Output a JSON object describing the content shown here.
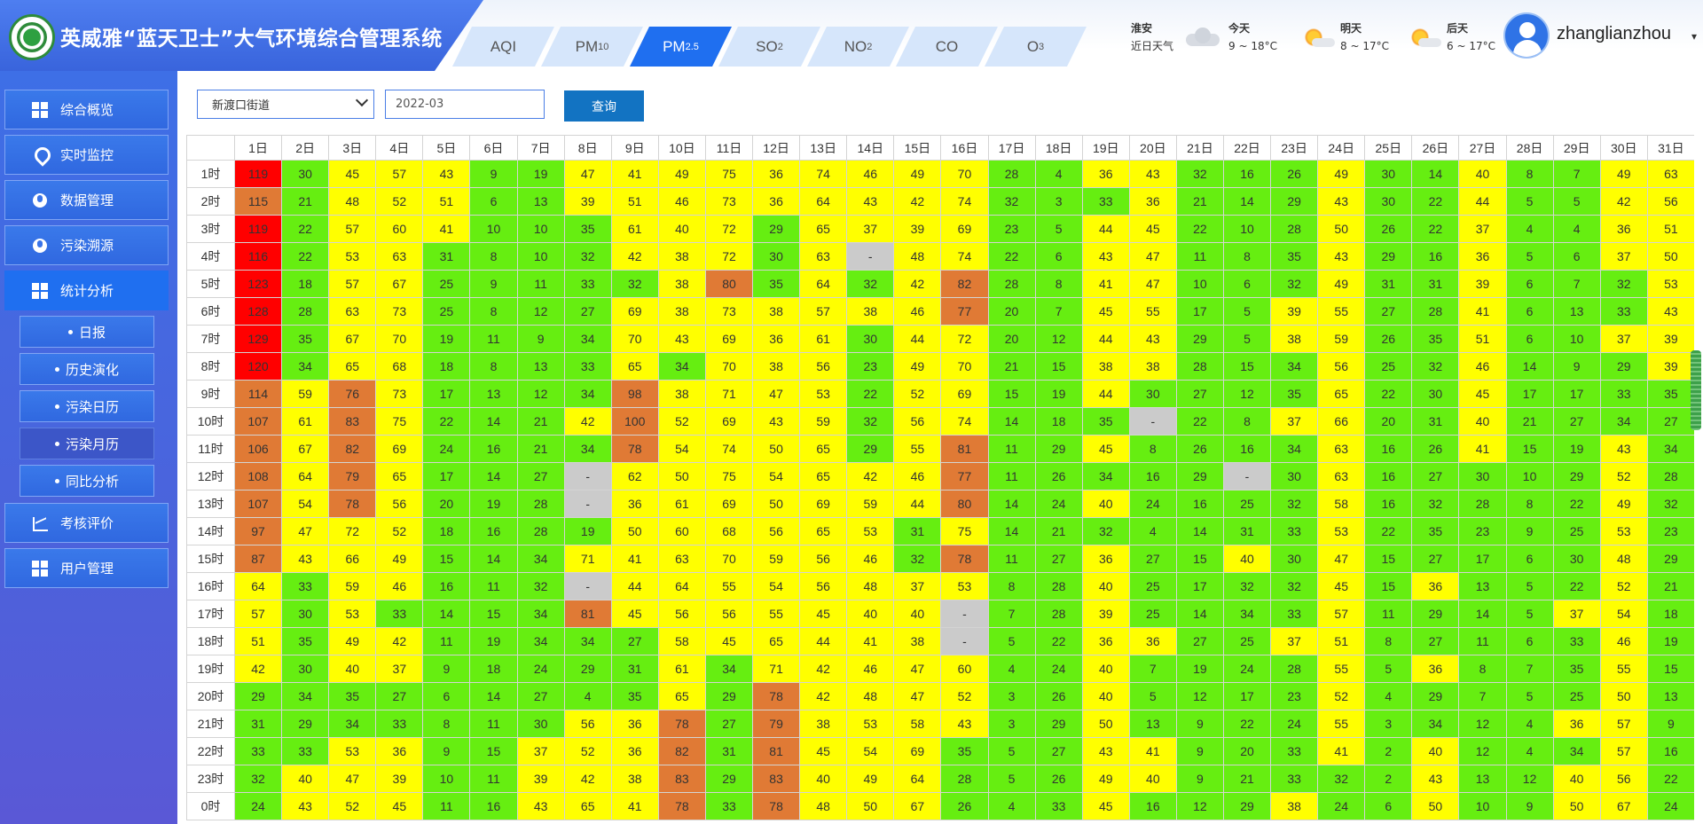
{
  "app": {
    "title": "英威雅“蓝天卫士”大气环境综合管理系统"
  },
  "colors": {
    "brand": "#3964dc",
    "tab_active": "#1f6ff0",
    "level_green": "#66ee11",
    "level_yellow": "#ffff00",
    "level_orange": "#e07a35",
    "level_red": "#ff0000",
    "level_none": "#cbcbcb"
  },
  "tabs": [
    {
      "base": "AQI",
      "sub": ""
    },
    {
      "base": "PM",
      "sub": "10"
    },
    {
      "base": "PM",
      "sub": "2.5",
      "active": true
    },
    {
      "base": "SO",
      "sub": "2"
    },
    {
      "base": "NO",
      "sub": "2"
    },
    {
      "base": "CO",
      "sub": ""
    },
    {
      "base": "O",
      "sub": "3"
    }
  ],
  "weather": {
    "city": "淮安",
    "label": "近日天气",
    "days": [
      {
        "name": "今天",
        "range": "9 ~ 18°C",
        "icon": "cloud-icon"
      },
      {
        "name": "明天",
        "range": "8 ~ 17°C",
        "icon": "sun-icon"
      },
      {
        "name": "后天",
        "range": "6 ~ 17°C",
        "icon": "sun-icon"
      }
    ]
  },
  "user": {
    "name": "zhanglianzhou"
  },
  "sidebar": {
    "items": [
      {
        "label": "综合概览",
        "icon": "grid-icon"
      },
      {
        "label": "实时监控",
        "icon": "location-pin-icon"
      },
      {
        "label": "数据管理",
        "icon": "globe-icon"
      },
      {
        "label": "污染溯源",
        "icon": "globe-icon"
      },
      {
        "label": "统计分析",
        "icon": "grid-icon",
        "active": true
      },
      {
        "label": "考核评价",
        "icon": "line-chart-icon"
      },
      {
        "label": "用户管理",
        "icon": "grid-icon"
      }
    ],
    "subitems": [
      {
        "label": "日报"
      },
      {
        "label": "历史演化"
      },
      {
        "label": "污染日历"
      },
      {
        "label": "污染月历",
        "active": true
      },
      {
        "label": "同比分析"
      }
    ]
  },
  "filters": {
    "station": "新渡口街道",
    "month": "2022-03",
    "query_label": "查询"
  },
  "grid": {
    "days": [
      "1日",
      "2日",
      "3日",
      "4日",
      "5日",
      "6日",
      "7日",
      "8日",
      "9日",
      "10日",
      "11日",
      "12日",
      "13日",
      "14日",
      "15日",
      "16日",
      "17日",
      "18日",
      "19日",
      "20日",
      "21日",
      "22日",
      "23日",
      "24日",
      "25日",
      "26日",
      "27日",
      "28日",
      "29日",
      "30日",
      "31日"
    ],
    "hours": [
      "1时",
      "2时",
      "3时",
      "4时",
      "5时",
      "6时",
      "7时",
      "8时",
      "9时",
      "10时",
      "11时",
      "12时",
      "13时",
      "14时",
      "15时",
      "16时",
      "17时",
      "18时",
      "19时",
      "20时",
      "21时",
      "22时",
      "23时",
      "0时"
    ],
    "rows": [
      [
        "119",
        "30",
        "45",
        "57",
        "43",
        "9",
        "19",
        "47",
        "41",
        "49",
        "75",
        "36",
        "74",
        "46",
        "49",
        "70",
        "28",
        "4",
        "36",
        "43",
        "32",
        "16",
        "26",
        "49",
        "30",
        "14",
        "40",
        "8",
        "7",
        "49",
        "63"
      ],
      [
        "115",
        "21",
        "48",
        "52",
        "51",
        "6",
        "13",
        "39",
        "51",
        "46",
        "73",
        "36",
        "64",
        "43",
        "42",
        "74",
        "32",
        "3",
        "33",
        "36",
        "21",
        "14",
        "29",
        "43",
        "30",
        "22",
        "44",
        "5",
        "5",
        "42",
        "56"
      ],
      [
        "119",
        "22",
        "57",
        "60",
        "41",
        "10",
        "10",
        "35",
        "61",
        "40",
        "72",
        "29",
        "65",
        "37",
        "39",
        "69",
        "23",
        "5",
        "44",
        "45",
        "22",
        "10",
        "28",
        "50",
        "26",
        "22",
        "37",
        "4",
        "4",
        "36",
        "51"
      ],
      [
        "116",
        "22",
        "53",
        "63",
        "31",
        "8",
        "10",
        "32",
        "42",
        "38",
        "72",
        "30",
        "63",
        "-",
        "48",
        "74",
        "22",
        "6",
        "43",
        "47",
        "11",
        "8",
        "35",
        "43",
        "29",
        "16",
        "36",
        "5",
        "6",
        "37",
        "50"
      ],
      [
        "123",
        "18",
        "57",
        "67",
        "25",
        "9",
        "11",
        "33",
        "32",
        "38",
        "80",
        "35",
        "64",
        "32",
        "42",
        "82",
        "28",
        "8",
        "41",
        "47",
        "10",
        "6",
        "32",
        "49",
        "31",
        "31",
        "39",
        "6",
        "7",
        "32",
        "53"
      ],
      [
        "128",
        "28",
        "63",
        "73",
        "25",
        "8",
        "12",
        "27",
        "69",
        "38",
        "73",
        "38",
        "57",
        "38",
        "46",
        "77",
        "20",
        "7",
        "45",
        "55",
        "17",
        "5",
        "39",
        "55",
        "27",
        "28",
        "41",
        "6",
        "13",
        "33",
        "43"
      ],
      [
        "129",
        "35",
        "67",
        "70",
        "19",
        "11",
        "9",
        "34",
        "70",
        "43",
        "69",
        "36",
        "61",
        "30",
        "44",
        "72",
        "20",
        "12",
        "44",
        "43",
        "29",
        "5",
        "38",
        "59",
        "26",
        "35",
        "51",
        "6",
        "10",
        "37",
        "39"
      ],
      [
        "120",
        "34",
        "65",
        "68",
        "18",
        "8",
        "13",
        "33",
        "65",
        "34",
        "70",
        "38",
        "56",
        "23",
        "49",
        "70",
        "21",
        "15",
        "38",
        "38",
        "28",
        "15",
        "34",
        "56",
        "25",
        "32",
        "46",
        "14",
        "9",
        "29",
        "39"
      ],
      [
        "114",
        "59",
        "76",
        "73",
        "17",
        "13",
        "12",
        "34",
        "98",
        "38",
        "71",
        "47",
        "53",
        "22",
        "52",
        "69",
        "15",
        "19",
        "44",
        "30",
        "27",
        "12",
        "35",
        "65",
        "22",
        "30",
        "45",
        "17",
        "17",
        "33",
        "35"
      ],
      [
        "107",
        "61",
        "83",
        "75",
        "22",
        "14",
        "21",
        "42",
        "100",
        "52",
        "69",
        "43",
        "59",
        "32",
        "56",
        "74",
        "14",
        "18",
        "35",
        "-",
        "22",
        "8",
        "37",
        "66",
        "20",
        "31",
        "40",
        "21",
        "27",
        "34",
        "27"
      ],
      [
        "106",
        "67",
        "82",
        "69",
        "24",
        "16",
        "21",
        "34",
        "78",
        "54",
        "74",
        "50",
        "65",
        "29",
        "55",
        "81",
        "11",
        "29",
        "45",
        "8",
        "26",
        "16",
        "34",
        "63",
        "16",
        "26",
        "41",
        "15",
        "19",
        "43",
        "34"
      ],
      [
        "108",
        "64",
        "79",
        "65",
        "17",
        "14",
        "27",
        "-",
        "62",
        "50",
        "75",
        "54",
        "65",
        "42",
        "46",
        "77",
        "11",
        "26",
        "34",
        "16",
        "29",
        "-",
        "30",
        "63",
        "16",
        "27",
        "30",
        "10",
        "29",
        "52",
        "28"
      ],
      [
        "107",
        "54",
        "78",
        "56",
        "20",
        "19",
        "28",
        "-",
        "36",
        "61",
        "69",
        "50",
        "69",
        "59",
        "44",
        "80",
        "14",
        "24",
        "40",
        "24",
        "16",
        "25",
        "32",
        "58",
        "16",
        "32",
        "28",
        "8",
        "22",
        "49",
        "32"
      ],
      [
        "97",
        "47",
        "72",
        "52",
        "18",
        "16",
        "28",
        "19",
        "50",
        "60",
        "68",
        "56",
        "65",
        "53",
        "31",
        "75",
        "14",
        "21",
        "32",
        "4",
        "14",
        "31",
        "33",
        "53",
        "22",
        "35",
        "23",
        "9",
        "25",
        "53",
        "23"
      ],
      [
        "87",
        "43",
        "66",
        "49",
        "15",
        "14",
        "34",
        "71",
        "41",
        "63",
        "70",
        "59",
        "56",
        "46",
        "32",
        "78",
        "11",
        "27",
        "36",
        "27",
        "15",
        "40",
        "30",
        "47",
        "15",
        "27",
        "17",
        "6",
        "30",
        "48",
        "29"
      ],
      [
        "64",
        "33",
        "59",
        "46",
        "16",
        "11",
        "32",
        "-",
        "44",
        "64",
        "55",
        "54",
        "56",
        "48",
        "37",
        "53",
        "8",
        "28",
        "40",
        "25",
        "17",
        "32",
        "32",
        "45",
        "15",
        "36",
        "13",
        "5",
        "22",
        "52",
        "21"
      ],
      [
        "57",
        "30",
        "53",
        "33",
        "14",
        "15",
        "34",
        "81",
        "45",
        "56",
        "56",
        "55",
        "45",
        "40",
        "40",
        "-",
        "7",
        "28",
        "39",
        "25",
        "14",
        "34",
        "33",
        "57",
        "11",
        "29",
        "14",
        "5",
        "37",
        "54",
        "18"
      ],
      [
        "51",
        "35",
        "49",
        "42",
        "11",
        "19",
        "34",
        "34",
        "27",
        "58",
        "45",
        "65",
        "44",
        "41",
        "38",
        "-",
        "5",
        "22",
        "36",
        "36",
        "27",
        "25",
        "37",
        "51",
        "8",
        "27",
        "11",
        "6",
        "33",
        "46",
        "19"
      ],
      [
        "42",
        "30",
        "40",
        "37",
        "9",
        "18",
        "24",
        "29",
        "31",
        "61",
        "34",
        "71",
        "42",
        "46",
        "47",
        "60",
        "4",
        "24",
        "40",
        "7",
        "19",
        "24",
        "28",
        "55",
        "5",
        "36",
        "8",
        "7",
        "35",
        "55",
        "15"
      ],
      [
        "29",
        "34",
        "35",
        "27",
        "6",
        "14",
        "27",
        "4",
        "35",
        "65",
        "29",
        "78",
        "42",
        "48",
        "47",
        "52",
        "3",
        "26",
        "40",
        "5",
        "12",
        "17",
        "23",
        "52",
        "4",
        "29",
        "7",
        "5",
        "25",
        "50",
        "13"
      ],
      [
        "31",
        "29",
        "34",
        "33",
        "8",
        "11",
        "30",
        "56",
        "36",
        "78",
        "27",
        "79",
        "38",
        "53",
        "58",
        "43",
        "3",
        "29",
        "50",
        "13",
        "9",
        "22",
        "24",
        "55",
        "3",
        "34",
        "12",
        "4",
        "36",
        "57",
        "9"
      ],
      [
        "33",
        "33",
        "53",
        "36",
        "9",
        "15",
        "37",
        "52",
        "36",
        "82",
        "31",
        "81",
        "45",
        "54",
        "69",
        "35",
        "5",
        "27",
        "43",
        "41",
        "9",
        "20",
        "33",
        "41",
        "2",
        "40",
        "12",
        "4",
        "34",
        "57",
        "16"
      ],
      [
        "32",
        "40",
        "47",
        "39",
        "10",
        "11",
        "39",
        "42",
        "38",
        "83",
        "29",
        "83",
        "40",
        "49",
        "64",
        "28",
        "5",
        "26",
        "49",
        "40",
        "9",
        "21",
        "33",
        "32",
        "2",
        "43",
        "13",
        "12",
        "40",
        "56",
        "22"
      ],
      [
        "24",
        "43",
        "52",
        "45",
        "11",
        "16",
        "43",
        "65",
        "41",
        "78",
        "33",
        "78",
        "48",
        "50",
        "67",
        "26",
        "4",
        "33",
        "45",
        "16",
        "12",
        "29",
        "38",
        "24",
        "6",
        "50",
        "10",
        "9",
        "50",
        "67",
        "24"
      ]
    ]
  }
}
